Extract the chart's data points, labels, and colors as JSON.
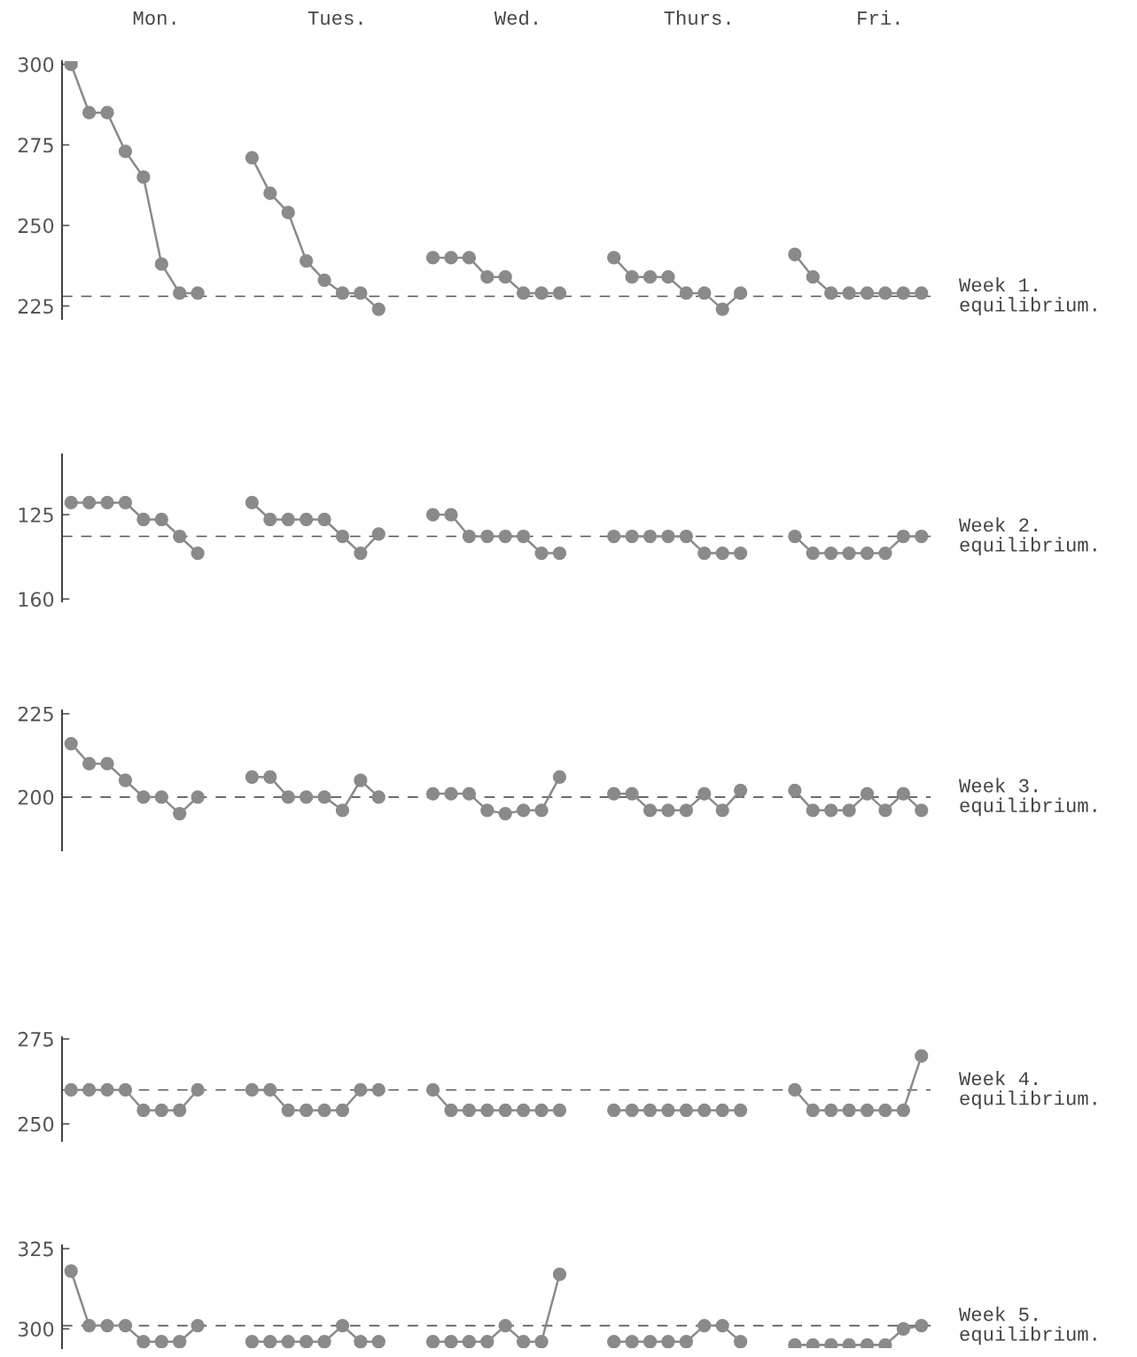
{
  "chart_data": [
    {
      "type": "line",
      "marker": "circle",
      "line_style": "solid",
      "ylim": [
        221,
        301
      ],
      "yticks": [
        225,
        250,
        275,
        300
      ],
      "annotations": [
        "Mon.",
        "Tues.",
        "Wed.",
        "Thurs.",
        "Fri."
      ],
      "categories": [
        null,
        null,
        null,
        null,
        null,
        null,
        null,
        null,
        null,
        null,
        null,
        null,
        null,
        null,
        null,
        null,
        null,
        null,
        null,
        null,
        null,
        null,
        null,
        null,
        null,
        null,
        null,
        null,
        null,
        null,
        null,
        null,
        null,
        null,
        null,
        null,
        null,
        null,
        null,
        null,
        null,
        null,
        null,
        null,
        null,
        null,
        null,
        null
      ],
      "ref_lines": [
        {
          "axis": "y",
          "value": 228,
          "label": "Week 1.\nequilibrium.",
          "line_style": "dashed",
          "color": "#555555"
        }
      ],
      "series": [
        {
          "color": "#8a8a8a",
          "values": [
            300,
            285,
            285,
            273,
            265,
            238,
            229,
            229,
            null,
            null,
            null,
            null,
            null,
            null,
            null,
            null,
            null,
            null,
            null,
            null,
            null,
            null,
            null,
            null,
            null,
            null,
            null,
            null,
            null,
            null,
            null,
            null,
            null,
            null,
            null,
            null,
            null,
            null,
            null,
            null,
            null,
            null,
            null,
            null,
            null,
            null,
            null,
            null
          ]
        },
        {
          "color": "#8a8a8a",
          "values": [
            null,
            null,
            null,
            null,
            null,
            null,
            null,
            null,
            null,
            null,
            271,
            260,
            254,
            239,
            233,
            229,
            229,
            224,
            null,
            null,
            null,
            null,
            null,
            null,
            null,
            null,
            null,
            null,
            null,
            null,
            null,
            null,
            null,
            null,
            null,
            null,
            null,
            null,
            null,
            null,
            null,
            null,
            null,
            null,
            null,
            null,
            null,
            null
          ]
        },
        {
          "color": "#8a8a8a",
          "values": [
            null,
            null,
            null,
            null,
            null,
            null,
            null,
            null,
            null,
            null,
            null,
            null,
            null,
            null,
            null,
            null,
            null,
            null,
            null,
            null,
            240,
            240,
            240,
            234,
            234,
            229,
            229,
            229,
            null,
            null,
            null,
            null,
            null,
            null,
            null,
            null,
            null,
            null,
            null,
            null,
            null,
            null,
            null,
            null,
            null,
            null,
            null,
            null
          ]
        },
        {
          "color": "#8a8a8a",
          "values": [
            null,
            null,
            null,
            null,
            null,
            null,
            null,
            null,
            null,
            null,
            null,
            null,
            null,
            null,
            null,
            null,
            null,
            null,
            null,
            null,
            null,
            null,
            null,
            null,
            null,
            null,
            null,
            null,
            null,
            null,
            240,
            234,
            234,
            234,
            229,
            229,
            224,
            229,
            null,
            null,
            null,
            null,
            null,
            null,
            null,
            null,
            null,
            null
          ]
        },
        {
          "color": "#8a8a8a",
          "values": [
            null,
            null,
            null,
            null,
            null,
            null,
            null,
            null,
            null,
            null,
            null,
            null,
            null,
            null,
            null,
            null,
            null,
            null,
            null,
            null,
            null,
            null,
            null,
            null,
            null,
            null,
            null,
            null,
            null,
            null,
            null,
            null,
            null,
            null,
            null,
            null,
            null,
            null,
            null,
            null,
            241,
            234,
            229,
            229,
            229,
            229,
            229,
            229
          ]
        }
      ]
    },
    {
      "type": "line",
      "marker": "circle",
      "line_style": "solid",
      "ylim": [
        161,
        100
      ],
      "yticks": [
        125,
        160
      ],
      "categories": [
        null,
        null,
        null,
        null,
        null,
        null,
        null,
        null,
        null,
        null,
        null,
        null,
        null,
        null,
        null,
        null,
        null,
        null,
        null,
        null,
        null,
        null,
        null,
        null,
        null,
        null,
        null,
        null,
        null,
        null,
        null,
        null,
        null,
        null,
        null,
        null,
        null,
        null,
        null,
        null,
        null,
        null,
        null,
        null,
        null,
        null,
        null,
        null
      ],
      "ref_lines": [
        {
          "axis": "y",
          "value": 134,
          "label": "Week 2.\nequilibrium.",
          "line_style": "dashed",
          "color": "#555555"
        }
      ],
      "series": [
        {
          "color": "#8a8a8a",
          "values": [
            120,
            120,
            120,
            120,
            127,
            127,
            134,
            141,
            null,
            null,
            null,
            null,
            null,
            null,
            null,
            null,
            null,
            null,
            null,
            null,
            null,
            null,
            null,
            null,
            null,
            null,
            null,
            null,
            null,
            null,
            null,
            null,
            null,
            null,
            null,
            null,
            null,
            null,
            null,
            null,
            null,
            null,
            null,
            null,
            null,
            null,
            null,
            null
          ]
        },
        {
          "color": "#8a8a8a",
          "values": [
            null,
            null,
            null,
            null,
            null,
            null,
            null,
            null,
            null,
            null,
            120,
            127,
            127,
            127,
            127,
            134,
            141,
            133,
            null,
            null,
            null,
            null,
            null,
            null,
            null,
            null,
            null,
            null,
            null,
            null,
            null,
            null,
            null,
            null,
            null,
            null,
            null,
            null,
            null,
            null,
            null,
            null,
            null,
            null,
            null,
            null,
            null,
            null
          ]
        },
        {
          "color": "#8a8a8a",
          "values": [
            null,
            null,
            null,
            null,
            null,
            null,
            null,
            null,
            null,
            null,
            null,
            null,
            null,
            null,
            null,
            null,
            null,
            null,
            null,
            null,
            125,
            125,
            134,
            134,
            134,
            134,
            141,
            141,
            null,
            null,
            null,
            null,
            null,
            null,
            null,
            null,
            null,
            null,
            null,
            null,
            null,
            null,
            null,
            null,
            null,
            null,
            null,
            null
          ]
        },
        {
          "color": "#8a8a8a",
          "values": [
            null,
            null,
            null,
            null,
            null,
            null,
            null,
            null,
            null,
            null,
            null,
            null,
            null,
            null,
            null,
            null,
            null,
            null,
            null,
            null,
            null,
            null,
            null,
            null,
            null,
            null,
            null,
            null,
            null,
            null,
            134,
            134,
            134,
            134,
            134,
            141,
            141,
            141,
            null,
            null,
            null,
            null,
            null,
            null,
            null,
            null,
            null,
            null
          ]
        },
        {
          "color": "#8a8a8a",
          "values": [
            null,
            null,
            null,
            null,
            null,
            null,
            null,
            null,
            null,
            null,
            null,
            null,
            null,
            null,
            null,
            null,
            null,
            null,
            null,
            null,
            null,
            null,
            null,
            null,
            null,
            null,
            null,
            null,
            null,
            null,
            null,
            null,
            null,
            null,
            null,
            null,
            null,
            null,
            null,
            null,
            134,
            141,
            141,
            141,
            141,
            141,
            134,
            134
          ]
        }
      ]
    },
    {
      "type": "line",
      "marker": "circle",
      "line_style": "solid",
      "ylim": [
        184,
        226
      ],
      "yticks": [
        200,
        225
      ],
      "categories": [
        null,
        null,
        null,
        null,
        null,
        null,
        null,
        null,
        null,
        null,
        null,
        null,
        null,
        null,
        null,
        null,
        null,
        null,
        null,
        null,
        null,
        null,
        null,
        null,
        null,
        null,
        null,
        null,
        null,
        null,
        null,
        null,
        null,
        null,
        null,
        null,
        null,
        null,
        null,
        null,
        null,
        null,
        null,
        null,
        null,
        null,
        null,
        null
      ],
      "ref_lines": [
        {
          "axis": "y",
          "value": 200,
          "label": "Week 3.\nequilibrium.",
          "line_style": "dashed",
          "color": "#555555"
        }
      ],
      "series": [
        {
          "color": "#8a8a8a",
          "values": [
            216,
            210,
            210,
            205,
            200,
            200,
            195,
            200,
            null,
            null,
            null,
            null,
            null,
            null,
            null,
            null,
            null,
            null,
            null,
            null,
            null,
            null,
            null,
            null,
            null,
            null,
            null,
            null,
            null,
            null,
            null,
            null,
            null,
            null,
            null,
            null,
            null,
            null,
            null,
            null,
            null,
            null,
            null,
            null,
            null,
            null,
            null,
            null
          ]
        },
        {
          "color": "#8a8a8a",
          "values": [
            null,
            null,
            null,
            null,
            null,
            null,
            null,
            null,
            null,
            null,
            206,
            206,
            200,
            200,
            200,
            196,
            205,
            200,
            null,
            null,
            null,
            null,
            null,
            null,
            null,
            null,
            null,
            null,
            null,
            null,
            null,
            null,
            null,
            null,
            null,
            null,
            null,
            null,
            null,
            null,
            null,
            null,
            null,
            null,
            null,
            null,
            null,
            null
          ]
        },
        {
          "color": "#8a8a8a",
          "values": [
            null,
            null,
            null,
            null,
            null,
            null,
            null,
            null,
            null,
            null,
            null,
            null,
            null,
            null,
            null,
            null,
            null,
            null,
            null,
            null,
            201,
            201,
            201,
            196,
            195,
            196,
            196,
            206,
            null,
            null,
            null,
            null,
            null,
            null,
            null,
            null,
            null,
            null,
            null,
            null,
            null,
            null,
            null,
            null,
            null,
            null,
            null,
            null
          ]
        },
        {
          "color": "#8a8a8a",
          "values": [
            null,
            null,
            null,
            null,
            null,
            null,
            null,
            null,
            null,
            null,
            null,
            null,
            null,
            null,
            null,
            null,
            null,
            null,
            null,
            null,
            null,
            null,
            null,
            null,
            null,
            null,
            null,
            null,
            null,
            null,
            201,
            201,
            196,
            196,
            196,
            201,
            196,
            202,
            null,
            null,
            null,
            null,
            null,
            null,
            null,
            null,
            null,
            null
          ]
        },
        {
          "color": "#8a8a8a",
          "values": [
            null,
            null,
            null,
            null,
            null,
            null,
            null,
            null,
            null,
            null,
            null,
            null,
            null,
            null,
            null,
            null,
            null,
            null,
            null,
            null,
            null,
            null,
            null,
            null,
            null,
            null,
            null,
            null,
            null,
            null,
            null,
            null,
            null,
            null,
            null,
            null,
            null,
            null,
            null,
            null,
            202,
            196,
            196,
            196,
            201,
            196,
            201,
            196
          ]
        }
      ]
    },
    {
      "type": "line",
      "marker": "circle",
      "line_style": "solid",
      "ylim": [
        245,
        275.5
      ],
      "yticks": [
        250,
        275
      ],
      "categories": [
        null,
        null,
        null,
        null,
        null,
        null,
        null,
        null,
        null,
        null,
        null,
        null,
        null,
        null,
        null,
        null,
        null,
        null,
        null,
        null,
        null,
        null,
        null,
        null,
        null,
        null,
        null,
        null,
        null,
        null,
        null,
        null,
        null,
        null,
        null,
        null,
        null,
        null,
        null,
        null,
        null,
        null,
        null,
        null,
        null,
        null,
        null,
        null
      ],
      "ref_lines": [
        {
          "axis": "y",
          "value": 260,
          "label": "Week 4.\nequilibrium.",
          "line_style": "dashed",
          "color": "#555555"
        }
      ],
      "series": [
        {
          "color": "#8a8a8a",
          "values": [
            260,
            260,
            260,
            260,
            254,
            254,
            254,
            260,
            null,
            null,
            null,
            null,
            null,
            null,
            null,
            null,
            null,
            null,
            null,
            null,
            null,
            null,
            null,
            null,
            null,
            null,
            null,
            null,
            null,
            null,
            null,
            null,
            null,
            null,
            null,
            null,
            null,
            null,
            null,
            null,
            null,
            null,
            null,
            null,
            null,
            null,
            null,
            null
          ]
        },
        {
          "color": "#8a8a8a",
          "values": [
            null,
            null,
            null,
            null,
            null,
            null,
            null,
            null,
            null,
            null,
            260,
            260,
            254,
            254,
            254,
            254,
            260,
            260,
            null,
            null,
            null,
            null,
            null,
            null,
            null,
            null,
            null,
            null,
            null,
            null,
            null,
            null,
            null,
            null,
            null,
            null,
            null,
            null,
            null,
            null,
            null,
            null,
            null,
            null,
            null,
            null,
            null,
            null
          ]
        },
        {
          "color": "#8a8a8a",
          "values": [
            null,
            null,
            null,
            null,
            null,
            null,
            null,
            null,
            null,
            null,
            null,
            null,
            null,
            null,
            null,
            null,
            null,
            null,
            null,
            null,
            260,
            254,
            254,
            254,
            254,
            254,
            254,
            254,
            null,
            null,
            null,
            null,
            null,
            null,
            null,
            null,
            null,
            null,
            null,
            null,
            null,
            null,
            null,
            null,
            null,
            null,
            null,
            null
          ]
        },
        {
          "color": "#8a8a8a",
          "values": [
            null,
            null,
            null,
            null,
            null,
            null,
            null,
            null,
            null,
            null,
            null,
            null,
            null,
            null,
            null,
            null,
            null,
            null,
            null,
            null,
            null,
            null,
            null,
            null,
            null,
            null,
            null,
            null,
            null,
            null,
            254,
            254,
            254,
            254,
            254,
            254,
            254,
            254,
            null,
            null,
            null,
            null,
            null,
            null,
            null,
            null,
            null,
            null
          ]
        },
        {
          "color": "#8a8a8a",
          "values": [
            null,
            null,
            null,
            null,
            null,
            null,
            null,
            null,
            null,
            null,
            null,
            null,
            null,
            null,
            null,
            null,
            null,
            null,
            null,
            null,
            null,
            null,
            null,
            null,
            null,
            null,
            null,
            null,
            null,
            null,
            null,
            null,
            null,
            null,
            null,
            null,
            null,
            null,
            null,
            null,
            260,
            254,
            254,
            254,
            254,
            254,
            254,
            270
          ]
        }
      ]
    },
    {
      "type": "line",
      "marker": "circle",
      "line_style": "solid",
      "ylim": [
        294,
        326
      ],
      "yticks": [
        300,
        325
      ],
      "categories": [
        null,
        null,
        null,
        null,
        null,
        null,
        null,
        null,
        null,
        null,
        null,
        null,
        null,
        null,
        null,
        null,
        null,
        null,
        null,
        null,
        null,
        null,
        null,
        null,
        null,
        null,
        null,
        null,
        null,
        null,
        null,
        null,
        null,
        null,
        null,
        null,
        null,
        null,
        null,
        null,
        null,
        null,
        null,
        null,
        null,
        null,
        null,
        null
      ],
      "ref_lines": [
        {
          "axis": "y",
          "value": 301,
          "label": "Week 5.\nequilibrium.",
          "line_style": "dashed",
          "color": "#555555"
        }
      ],
      "series": [
        {
          "color": "#8a8a8a",
          "values": [
            318,
            301,
            301,
            301,
            296,
            296,
            296,
            301,
            null,
            null,
            null,
            null,
            null,
            null,
            null,
            null,
            null,
            null,
            null,
            null,
            null,
            null,
            null,
            null,
            null,
            null,
            null,
            null,
            null,
            null,
            null,
            null,
            null,
            null,
            null,
            null,
            null,
            null,
            null,
            null,
            null,
            null,
            null,
            null,
            null,
            null,
            null,
            null
          ]
        },
        {
          "color": "#8a8a8a",
          "values": [
            null,
            null,
            null,
            null,
            null,
            null,
            null,
            null,
            null,
            null,
            296,
            296,
            296,
            296,
            296,
            301,
            296,
            296,
            null,
            null,
            null,
            null,
            null,
            null,
            null,
            null,
            null,
            null,
            null,
            null,
            null,
            null,
            null,
            null,
            null,
            null,
            null,
            null,
            null,
            null,
            null,
            null,
            null,
            null,
            null,
            null,
            null,
            null
          ]
        },
        {
          "color": "#8a8a8a",
          "values": [
            null,
            null,
            null,
            null,
            null,
            null,
            null,
            null,
            null,
            null,
            null,
            null,
            null,
            null,
            null,
            null,
            null,
            null,
            null,
            null,
            296,
            296,
            296,
            296,
            301,
            296,
            296,
            317,
            null,
            null,
            null,
            null,
            null,
            null,
            null,
            null,
            null,
            null,
            null,
            null,
            null,
            null,
            null,
            null,
            null,
            null,
            null,
            null
          ]
        },
        {
          "color": "#8a8a8a",
          "values": [
            null,
            null,
            null,
            null,
            null,
            null,
            null,
            null,
            null,
            null,
            null,
            null,
            null,
            null,
            null,
            null,
            null,
            null,
            null,
            null,
            null,
            null,
            null,
            null,
            null,
            null,
            null,
            null,
            null,
            null,
            296,
            296,
            296,
            296,
            296,
            301,
            301,
            296,
            null,
            null,
            null,
            null,
            null,
            null,
            null,
            null,
            null,
            null
          ]
        },
        {
          "color": "#8a8a8a",
          "values": [
            null,
            null,
            null,
            null,
            null,
            null,
            null,
            null,
            null,
            null,
            null,
            null,
            null,
            null,
            null,
            null,
            null,
            null,
            null,
            null,
            null,
            null,
            null,
            null,
            null,
            null,
            null,
            null,
            null,
            null,
            null,
            null,
            null,
            null,
            null,
            null,
            null,
            null,
            null,
            null,
            295,
            295,
            295,
            295,
            295,
            295,
            300,
            301
          ]
        }
      ]
    }
  ]
}
